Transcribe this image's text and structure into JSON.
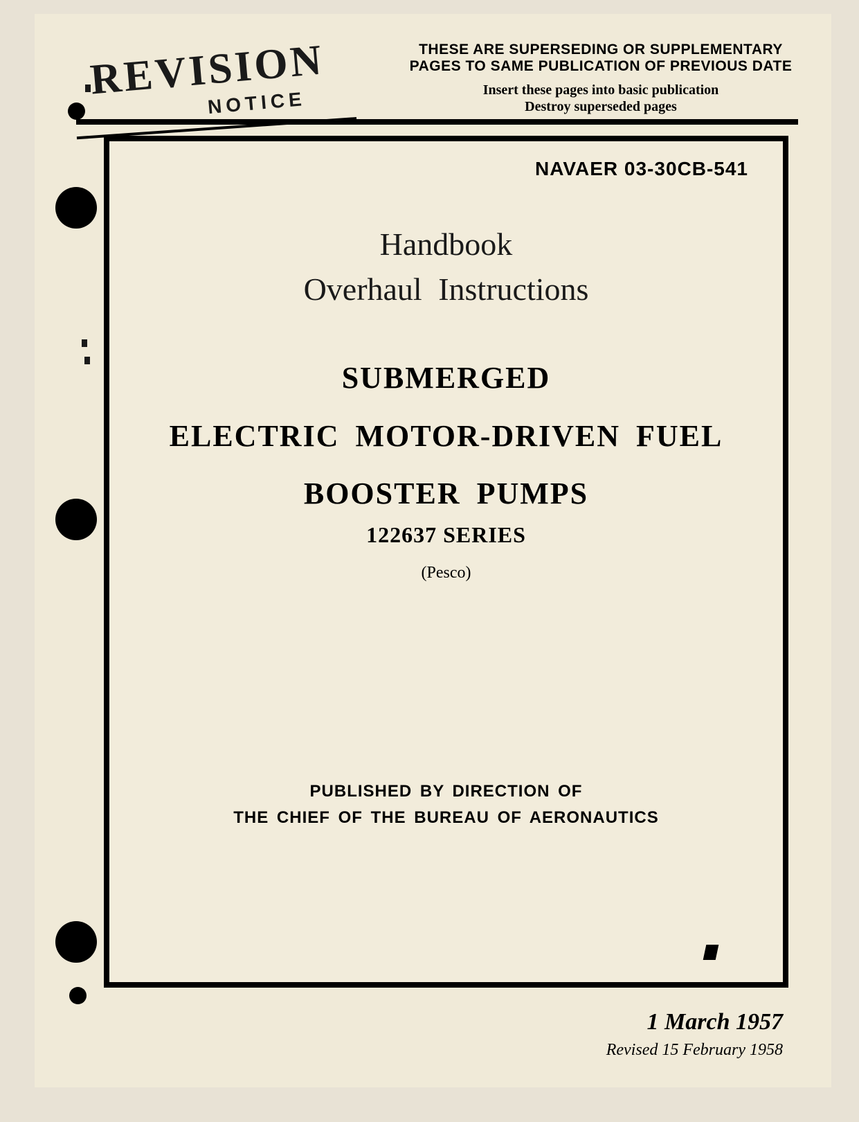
{
  "header": {
    "revision_label": "REVISION",
    "notice_label": "NOTICE",
    "superseding_text": "THESE ARE SUPERSEDING OR SUPPLEMENTARY PAGES TO SAME PUBLICATION OF PREVIOUS DATE",
    "insert_text": "Insert these pages into basic publication",
    "destroy_text": "Destroy superseded pages"
  },
  "document": {
    "publication_id": "NAVAER 03-30CB-541",
    "title_line1": "Handbook",
    "title_line2": "Overhaul  Instructions",
    "main_title_line1": "SUBMERGED",
    "main_title_line2": "ELECTRIC MOTOR-DRIVEN FUEL",
    "main_title_line3": "BOOSTER PUMPS",
    "series": "122637 SERIES",
    "manufacturer": "(Pesco)",
    "published_line1": "PUBLISHED BY DIRECTION OF",
    "published_line2": "THE CHIEF OF THE BUREAU OF AERONAUTICS"
  },
  "dates": {
    "main_date": "1 March 1957",
    "revised_date": "Revised 15 February 1958"
  },
  "styling": {
    "page_background": "#f0ead8",
    "body_background": "#e8e2d5",
    "border_color": "#000000",
    "text_color": "#000000",
    "border_width": 8,
    "revision_fontsize": 62,
    "superseding_fontsize": 21,
    "pubid_fontsize": 28,
    "handbook_fontsize": 46,
    "main_title_fontsize": 44,
    "series_fontsize": 32,
    "published_fontsize": 24,
    "date_fontsize": 34
  }
}
